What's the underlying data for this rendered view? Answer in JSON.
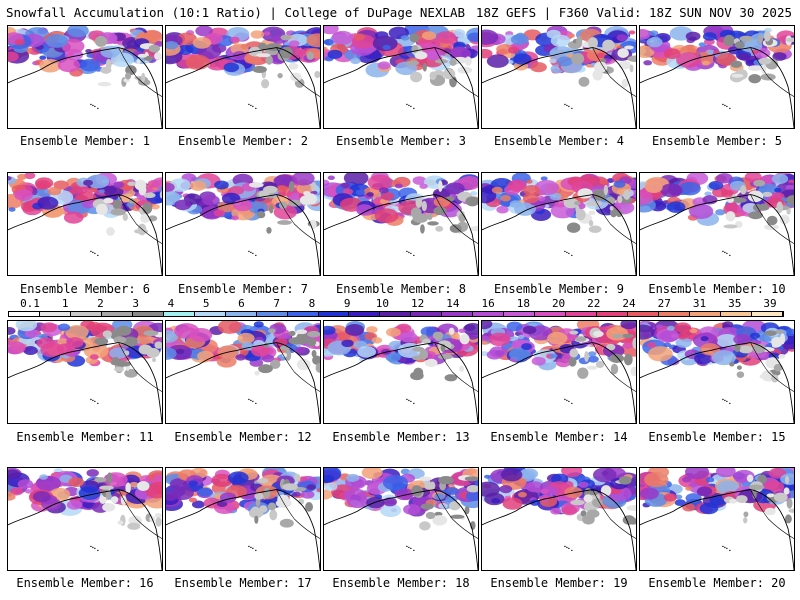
{
  "header": {
    "left": "Snowfall Accumulation (10:1 Ratio) | College of DuPage NEXLAB",
    "right": "18Z GEFS | F360 Valid: 18Z SUN NOV 30 2025"
  },
  "panels": [
    {
      "label": "Ensemble Member: 1"
    },
    {
      "label": "Ensemble Member: 2"
    },
    {
      "label": "Ensemble Member: 3"
    },
    {
      "label": "Ensemble Member: 4"
    },
    {
      "label": "Ensemble Member: 5"
    },
    {
      "label": "Ensemble Member: 6"
    },
    {
      "label": "Ensemble Member: 7"
    },
    {
      "label": "Ensemble Member: 8"
    },
    {
      "label": "Ensemble Member: 9"
    },
    {
      "label": "Ensemble Member: 10"
    },
    {
      "label": "Ensemble Member: 11"
    },
    {
      "label": "Ensemble Member: 12"
    },
    {
      "label": "Ensemble Member: 13"
    },
    {
      "label": "Ensemble Member: 14"
    },
    {
      "label": "Ensemble Member: 15"
    },
    {
      "label": "Ensemble Member: 16"
    },
    {
      "label": "Ensemble Member: 17"
    },
    {
      "label": "Ensemble Member: 18"
    },
    {
      "label": "Ensemble Member: 19"
    },
    {
      "label": "Ensemble Member: 20"
    }
  ],
  "legend": {
    "ticks": [
      "0.1",
      "1",
      "2",
      "3",
      "4",
      "5",
      "6",
      "7",
      "8",
      "9",
      "10",
      "12",
      "14",
      "16",
      "18",
      "20",
      "22",
      "24",
      "27",
      "31",
      "35",
      "39"
    ],
    "colors": [
      "#ffffff",
      "#e6e6e6",
      "#c8c8c8",
      "#a8a8a8",
      "#8a8a8a",
      "#9ff0ee",
      "#b4d8f6",
      "#8cb4ec",
      "#5c8ce6",
      "#3c64e8",
      "#2034d6",
      "#3a1cc0",
      "#5a20a8",
      "#7a2ab8",
      "#9a38c8",
      "#b44cd6",
      "#c85ad8",
      "#d850c0",
      "#e04498",
      "#e2407a",
      "#e65a62",
      "#ec7e66",
      "#f2a278",
      "#f8c694",
      "#fde6c0"
    ]
  },
  "colors": {
    "land": "#ffffff",
    "water": "#ffffff",
    "border": "#000000"
  }
}
